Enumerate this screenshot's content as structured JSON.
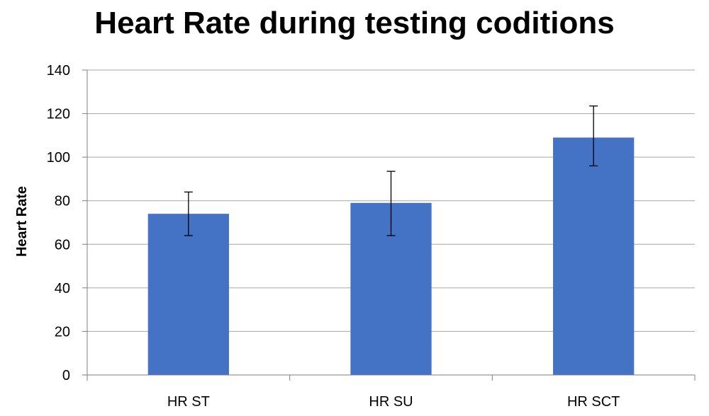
{
  "chart_data": {
    "type": "bar",
    "title": "Heart Rate during testing coditions",
    "xlabel": "",
    "ylabel": "Heart Rate",
    "categories": [
      "HR ST",
      "HR SU",
      "HR SCT"
    ],
    "values": [
      74,
      79,
      109
    ],
    "error_low": [
      64,
      64,
      96
    ],
    "error_high": [
      84,
      93.5,
      123.5
    ],
    "ylim": [
      0,
      140
    ],
    "yticks": [
      0,
      20,
      40,
      60,
      80,
      100,
      120,
      140
    ],
    "grid": true,
    "legend": "none",
    "bar_color": "#4472C4"
  }
}
